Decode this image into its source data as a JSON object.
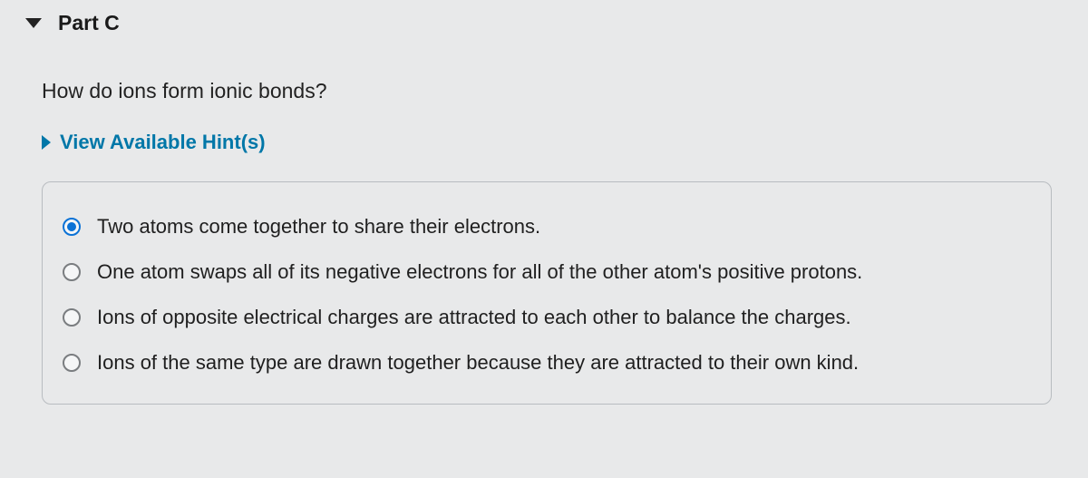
{
  "part": {
    "title": "Part C",
    "question": "How do ions form ionic bonds?",
    "hints_label": "View Available Hint(s)"
  },
  "options": [
    {
      "label": "Two atoms come together to share their electrons.",
      "selected": true
    },
    {
      "label": "One atom swaps all of its negative electrons for all of the other atom's positive protons.",
      "selected": false
    },
    {
      "label": "Ions of opposite electrical charges are attracted to each other to balance the charges.",
      "selected": false
    },
    {
      "label": "Ions of the same type are drawn together because they are attracted to their own kind.",
      "selected": false
    }
  ],
  "colors": {
    "background": "#e8e9ea",
    "text": "#1a1a1a",
    "link": "#0077a8",
    "radio_selected": "#0b72d6",
    "border": "#b8bcc0"
  }
}
